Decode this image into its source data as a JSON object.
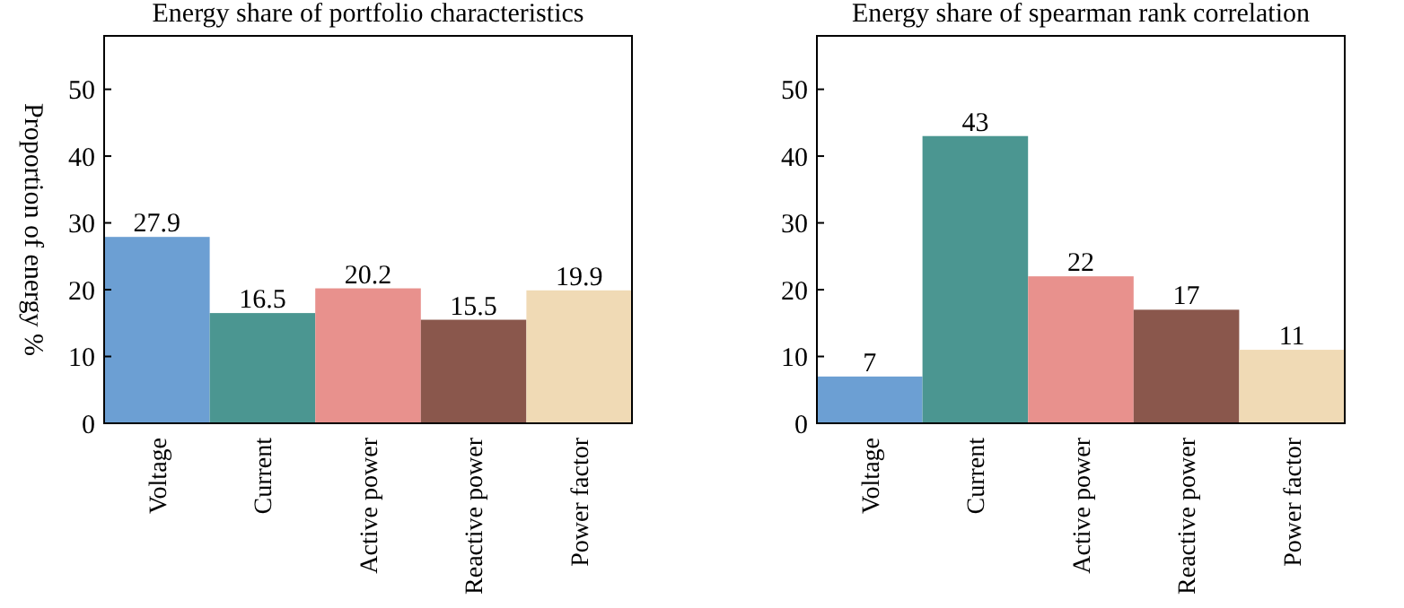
{
  "chart_data": [
    {
      "type": "bar",
      "title": "Energy share of portfolio characteristics",
      "ylabel": "Proportion of energy %",
      "categories": [
        "Voltage",
        "Current",
        "Active power",
        "Reactive power",
        "Power factor"
      ],
      "values": [
        27.9,
        16.5,
        20.2,
        15.5,
        19.9
      ],
      "colors": [
        "#6c9fd3",
        "#4b9691",
        "#e8918d",
        "#8a574c",
        "#f0dab5"
      ],
      "ylim": [
        0,
        58
      ],
      "yticks": [
        0,
        10,
        20,
        30,
        40,
        50
      ],
      "data_labels": true,
      "grid": false
    },
    {
      "type": "bar",
      "title": "Energy share of spearman rank correlation",
      "categories": [
        "Voltage",
        "Current",
        "Active power",
        "Reactive power",
        "Power factor"
      ],
      "values": [
        7,
        43,
        22,
        17,
        11
      ],
      "colors": [
        "#6c9fd3",
        "#4b9691",
        "#e8918d",
        "#8a574c",
        "#f0dab5"
      ],
      "ylim": [
        0,
        58
      ],
      "yticks": [
        0,
        10,
        20,
        30,
        40,
        50
      ],
      "data_labels": true,
      "grid": false
    }
  ]
}
